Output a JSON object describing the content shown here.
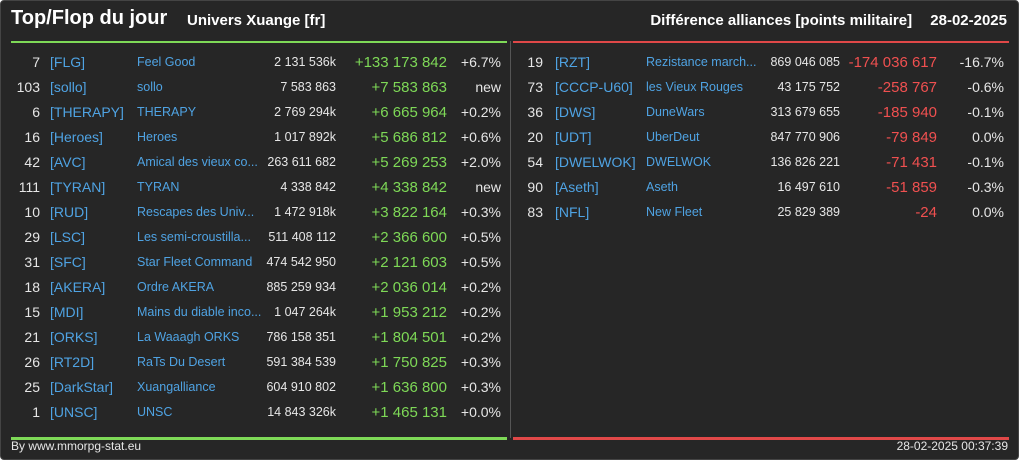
{
  "header": {
    "title": "Top/Flop du jour",
    "subtitle": "Univers Xuange [fr]",
    "right_title": "Différence alliances [points militaire]",
    "date": "28-02-2025"
  },
  "top": [
    {
      "rank": "7",
      "tag": "[FLG]",
      "name": "Feel Good",
      "points": "2 131 536k",
      "diff": "+133 173 842",
      "pct": "+6.7%"
    },
    {
      "rank": "103",
      "tag": "[sollo]",
      "name": "sollo",
      "points": "7 583 863",
      "diff": "+7 583 863",
      "pct": "new"
    },
    {
      "rank": "6",
      "tag": "[THERAPY]",
      "name": "THERAPY",
      "points": "2 769 294k",
      "diff": "+6 665 964",
      "pct": "+0.2%"
    },
    {
      "rank": "16",
      "tag": "[Heroes]",
      "name": "Heroes",
      "points": "1 017 892k",
      "diff": "+5 686 812",
      "pct": "+0.6%"
    },
    {
      "rank": "42",
      "tag": "[AVC]",
      "name": "Amical des vieux co...",
      "points": "263 611 682",
      "diff": "+5 269 253",
      "pct": "+2.0%"
    },
    {
      "rank": "111",
      "tag": "[TYRAN]",
      "name": "TYRAN",
      "points": "4 338 842",
      "diff": "+4 338 842",
      "pct": "new"
    },
    {
      "rank": "10",
      "tag": "[RUD]",
      "name": "Rescapes des Univ...",
      "points": "1 472 918k",
      "diff": "+3 822 164",
      "pct": "+0.3%"
    },
    {
      "rank": "29",
      "tag": "[LSC]",
      "name": "Les semi-croustilla...",
      "points": "511 408 112",
      "diff": "+2 366 600",
      "pct": "+0.5%"
    },
    {
      "rank": "31",
      "tag": "[SFC]",
      "name": "Star Fleet Command",
      "points": "474 542 950",
      "diff": "+2 121 603",
      "pct": "+0.5%"
    },
    {
      "rank": "18",
      "tag": "[AKERA]",
      "name": "Ordre AKERA",
      "points": "885 259 934",
      "diff": "+2 036 014",
      "pct": "+0.2%"
    },
    {
      "rank": "15",
      "tag": "[MDI]",
      "name": "Mains du diable inco...",
      "points": "1 047 264k",
      "diff": "+1 953 212",
      "pct": "+0.2%"
    },
    {
      "rank": "21",
      "tag": "[ORKS]",
      "name": "La Waaagh ORKS",
      "points": "786 158 351",
      "diff": "+1 804 501",
      "pct": "+0.2%"
    },
    {
      "rank": "26",
      "tag": "[RT2D]",
      "name": "RaTs Du Desert",
      "points": "591 384 539",
      "diff": "+1 750 825",
      "pct": "+0.3%"
    },
    {
      "rank": "25",
      "tag": "[DarkStar]",
      "name": "Xuangalliance",
      "points": "604 910 802",
      "diff": "+1 636 800",
      "pct": "+0.3%"
    },
    {
      "rank": "1",
      "tag": "[UNSC]",
      "name": "UNSC",
      "points": "14 843 326k",
      "diff": "+1 465 131",
      "pct": "+0.0%"
    }
  ],
  "flop": [
    {
      "rank": "19",
      "tag": "[RZT]",
      "name": "Rezistance march...",
      "points": "869 046 085",
      "diff": "-174 036 617",
      "pct": "-16.7%"
    },
    {
      "rank": "73",
      "tag": "[CCCP-U60]",
      "name": "les Vieux Rouges",
      "points": "43 175 752",
      "diff": "-258 767",
      "pct": "-0.6%"
    },
    {
      "rank": "36",
      "tag": "[DWS]",
      "name": "DuneWars",
      "points": "313 679 655",
      "diff": "-185 940",
      "pct": "-0.1%"
    },
    {
      "rank": "20",
      "tag": "[UDT]",
      "name": "UberDeut",
      "points": "847 770 906",
      "diff": "-79 849",
      "pct": "0.0%"
    },
    {
      "rank": "54",
      "tag": "[DWELWOK]",
      "name": "DWELWOK",
      "points": "136 826 221",
      "diff": "-71 431",
      "pct": "-0.1%"
    },
    {
      "rank": "90",
      "tag": "[Aseth]",
      "name": "Aseth",
      "points": "16 497 610",
      "diff": "-51 859",
      "pct": "-0.3%"
    },
    {
      "rank": "83",
      "tag": "[NFL]",
      "name": "New Fleet",
      "points": "25 829 389",
      "diff": "-24",
      "pct": "0.0%"
    }
  ],
  "footer": {
    "left": "By www.mmorpg-stat.eu",
    "right": "28-02-2025 00:37:39"
  },
  "colors": {
    "background": "#262626",
    "positive": "#7ed957",
    "negative": "#f05050",
    "link": "#4fa3e3"
  }
}
